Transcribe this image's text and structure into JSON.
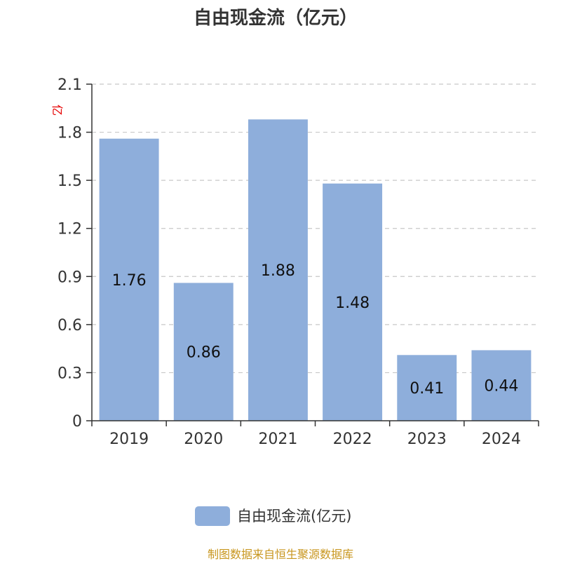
{
  "chart_data": {
    "type": "bar",
    "title": "自由现金流（亿元）",
    "unit_label": "亿",
    "categories": [
      "2019",
      "2020",
      "2021",
      "2022",
      "2023",
      "2024"
    ],
    "series": [
      {
        "name": "自由现金流(亿元)",
        "values": [
          1.76,
          0.86,
          1.88,
          1.48,
          0.41,
          0.44
        ]
      }
    ],
    "ylim": [
      0,
      2.1
    ],
    "y_ticks": [
      "0",
      "0.3",
      "0.6",
      "0.9",
      "1.2",
      "1.5",
      "1.8",
      "2.1"
    ],
    "grid": true,
    "legend_position": "bottom-center",
    "bar_color": "#8eaedb",
    "source": "制图数据来自恒生聚源数据库"
  }
}
